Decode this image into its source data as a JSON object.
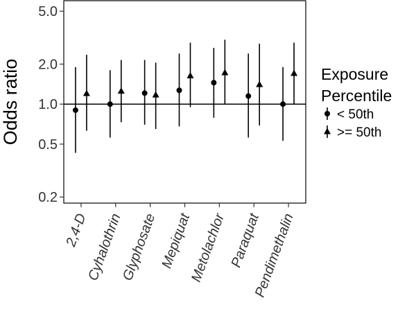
{
  "chart_data": {
    "type": "scatter",
    "title": "",
    "xlabel": "",
    "ylabel": "Odds ratio",
    "yscale": "log",
    "ylim": [
      0.18,
      6.0
    ],
    "yticks": [
      0.2,
      0.5,
      1.0,
      2.0,
      5.0
    ],
    "ytick_labels": [
      "0.2",
      "0.5",
      "1.0",
      "2.0",
      "5.0"
    ],
    "reference_line": 1.0,
    "grid": false,
    "categories": [
      "2,4-D",
      "Cyhalothrin",
      "Glyphosate",
      "Mepiquat",
      "Metolachlor",
      "Paraquat",
      "Pendimethalin"
    ],
    "legend": {
      "title_lines": [
        "Exposure",
        "Percentile"
      ],
      "position": "right"
    },
    "series": [
      {
        "name": "< 50th",
        "marker": "circle",
        "values": [
          0.9,
          1.0,
          1.21,
          1.27,
          1.45,
          1.15,
          1.0
        ],
        "lower": [
          0.43,
          0.56,
          0.7,
          0.68,
          0.79,
          0.56,
          0.53
        ],
        "upper": [
          1.9,
          1.8,
          2.15,
          2.4,
          2.65,
          2.4,
          1.9
        ]
      },
      {
        "name": ">= 50th",
        "marker": "triangle",
        "values": [
          1.2,
          1.25,
          1.17,
          1.63,
          1.72,
          1.4,
          1.7
        ],
        "lower": [
          0.63,
          0.73,
          0.65,
          0.95,
          1.0,
          0.69,
          1.0
        ],
        "upper": [
          2.35,
          2.15,
          2.05,
          2.9,
          3.05,
          2.85,
          2.9
        ]
      }
    ]
  }
}
